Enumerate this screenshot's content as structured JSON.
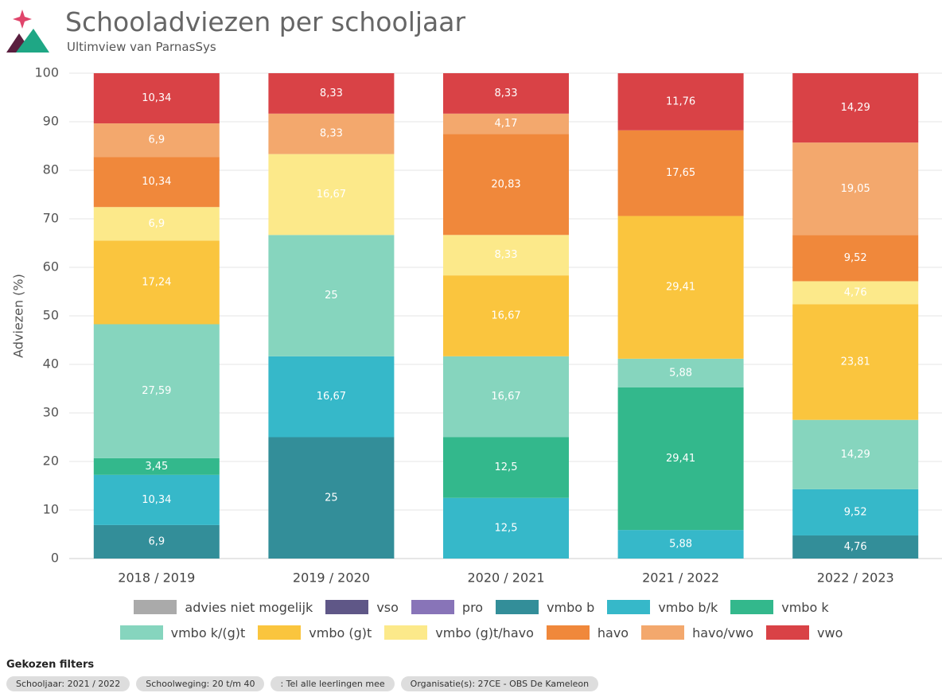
{
  "header": {
    "title": "Schooladviezen per schooljaar",
    "subtitle": "Ultimview van ParnasSys"
  },
  "chart_data": {
    "type": "stacked_bar",
    "ylabel": "Adviezen (%)",
    "categories": [
      "2018 / 2019",
      "2019 / 2020",
      "2020 / 2021",
      "2021 / 2022",
      "2022 / 2023"
    ],
    "ylim": [
      0,
      100
    ],
    "yticks": [
      0,
      10,
      20,
      30,
      40,
      50,
      60,
      70,
      80,
      90,
      100
    ],
    "grid": true,
    "legend": "bottom",
    "series": [
      {
        "name": "advies niet mogelijk",
        "color": "#aaaaaa",
        "values": [
          null,
          null,
          null,
          null,
          null
        ],
        "value_labels": [
          null,
          null,
          null,
          null,
          null
        ]
      },
      {
        "name": "vso",
        "color": "#5f5787",
        "values": [
          null,
          null,
          null,
          null,
          null
        ],
        "value_labels": [
          null,
          null,
          null,
          null,
          null
        ]
      },
      {
        "name": "pro",
        "color": "#8874b8",
        "values": [
          null,
          null,
          null,
          null,
          null
        ],
        "value_labels": [
          null,
          null,
          null,
          null,
          null
        ]
      },
      {
        "name": "vmbo b",
        "color": "#338e99",
        "values": [
          6.9,
          25,
          null,
          null,
          4.76
        ],
        "value_labels": [
          "6,9",
          "25",
          null,
          null,
          "4,76"
        ]
      },
      {
        "name": "vmbo b/k",
        "color": "#36b8c9",
        "values": [
          10.34,
          16.67,
          12.5,
          5.88,
          9.52
        ],
        "value_labels": [
          "10,34",
          "16,67",
          "12,5",
          "5,88",
          "9,52"
        ]
      },
      {
        "name": "vmbo k",
        "color": "#33b88c",
        "values": [
          3.45,
          null,
          12.5,
          29.41,
          null
        ],
        "value_labels": [
          "3,45",
          null,
          "12,5",
          "29,41",
          null
        ]
      },
      {
        "name": "vmbo k/(g)t",
        "color": "#86d5be",
        "values": [
          27.59,
          25,
          16.67,
          5.88,
          14.29
        ],
        "value_labels": [
          "27,59",
          "25",
          "16,67",
          "5,88",
          "14,29"
        ]
      },
      {
        "name": "vmbo (g)t",
        "color": "#fac53e",
        "values": [
          17.24,
          null,
          16.67,
          29.41,
          23.81
        ],
        "value_labels": [
          "17,24",
          null,
          "16,67",
          "29,41",
          "23,81"
        ]
      },
      {
        "name": "vmbo (g)t/havo",
        "color": "#fce98a",
        "values": [
          6.9,
          16.67,
          8.33,
          null,
          4.76
        ],
        "value_labels": [
          "6,9",
          "16,67",
          "8,33",
          null,
          "4,76"
        ]
      },
      {
        "name": "havo",
        "color": "#f0883b",
        "values": [
          10.34,
          null,
          20.83,
          17.65,
          9.52
        ],
        "value_labels": [
          "10,34",
          null,
          "20,83",
          "17,65",
          "9,52"
        ]
      },
      {
        "name": "havo/vwo",
        "color": "#f3a86d",
        "values": [
          6.9,
          8.33,
          4.17,
          null,
          19.05
        ],
        "value_labels": [
          "6,9",
          "8,33",
          "4,17",
          null,
          "19,05"
        ]
      },
      {
        "name": "vwo",
        "color": "#d94246",
        "values": [
          10.34,
          8.33,
          8.33,
          11.76,
          14.29
        ],
        "value_labels": [
          "10,34",
          "8,33",
          "8,33",
          "11,76",
          "14,29"
        ]
      }
    ]
  },
  "filters": {
    "title": "Gekozen filters",
    "chips": [
      "Schooljaar: 2021 / 2022",
      "Schoolweging: 20 t/m 40",
      ": Tel alle leerlingen mee",
      "Organisatie(s): 27CE - OBS De Kameleon"
    ]
  }
}
